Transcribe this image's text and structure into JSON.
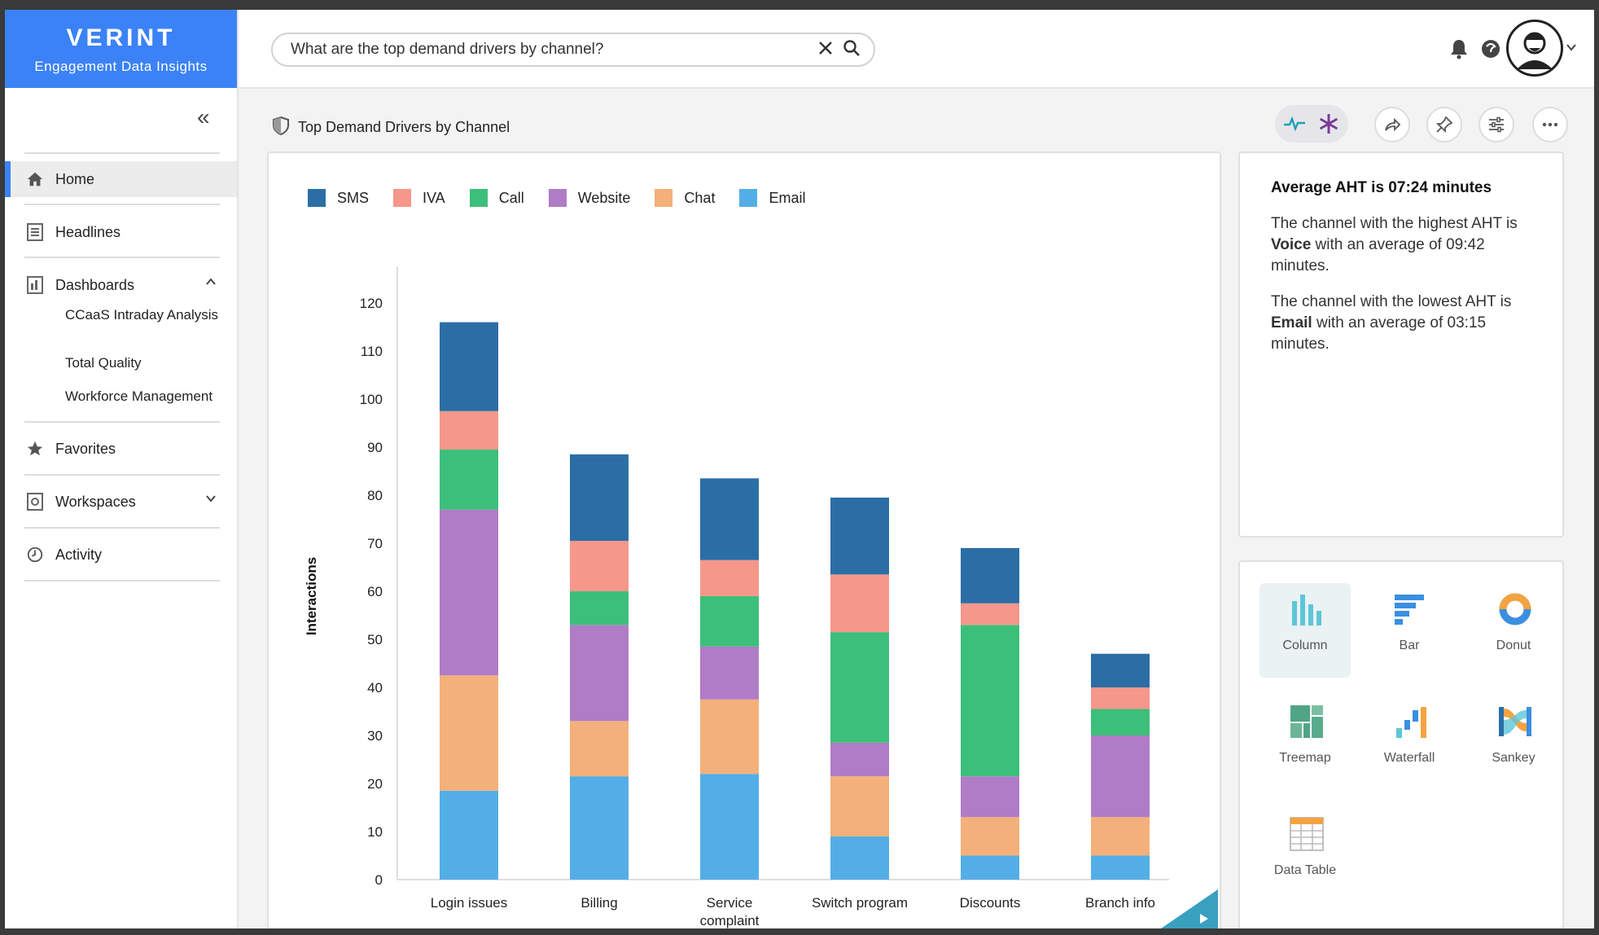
{
  "brand": {
    "name": "VERINT",
    "subtitle": "Engagement Data Insights"
  },
  "sidebar": {
    "items": [
      {
        "label": "Home",
        "icon": "home-icon",
        "active": true
      },
      {
        "label": "Headlines",
        "icon": "newspaper-icon"
      },
      {
        "label": "Dashboards",
        "icon": "dashboard-icon",
        "expanded": true
      },
      {
        "label": "Favorites",
        "icon": "star-icon"
      },
      {
        "label": "Workspaces",
        "icon": "workspace-icon",
        "expanded": false
      },
      {
        "label": "Activity",
        "icon": "clock-icon"
      }
    ],
    "dashboards": [
      "CCaaS Intraday Analysis",
      "Total Quality",
      "Workforce Management"
    ]
  },
  "search": {
    "value": "What are the top demand drivers by channel?"
  },
  "page": {
    "title": "Top Demand Drivers by Channel"
  },
  "insight": {
    "heading": "Average AHT is 07:24 minutes",
    "p1": {
      "before": "The channel with the highest AHT is ",
      "bold": "Voice",
      "after": " with an average of 09:42 minutes."
    },
    "p2": {
      "before": "The channel with the lowest AHT is ",
      "bold": "Email",
      "after": " with an average of 03:15 minutes."
    }
  },
  "chart_types": [
    "Column",
    "Bar",
    "Donut",
    "Treemap",
    "Waterfall",
    "Sankey",
    "Data Table"
  ],
  "selected_chart_type": "Column",
  "colors": {
    "brand": "#3b82f6"
  },
  "chart_data": {
    "type": "bar",
    "stacked": true,
    "title": "",
    "xlabel": "",
    "ylabel": "Interactions",
    "ylim": [
      0,
      120
    ],
    "yticks": [
      0,
      10,
      20,
      30,
      40,
      50,
      60,
      70,
      80,
      90,
      100,
      110,
      120
    ],
    "categories": [
      "Login issues",
      "Billing",
      "Service complaint",
      "Switch program",
      "Discounts",
      "Branch info"
    ],
    "legend_order": [
      "SMS",
      "IVA",
      "Call",
      "Website",
      "Chat",
      "Email"
    ],
    "series": [
      {
        "name": "Email",
        "color": "#53aee6",
        "values": [
          18.5,
          21.5,
          22,
          9,
          5,
          5
        ]
      },
      {
        "name": "Chat",
        "color": "#f4b07a",
        "values": [
          24,
          11.5,
          15.5,
          12.5,
          8,
          8
        ]
      },
      {
        "name": "Website",
        "color": "#b07cc6",
        "values": [
          34.5,
          20,
          11,
          7,
          8.5,
          17
        ]
      },
      {
        "name": "Call",
        "color": "#3cbf7a",
        "values": [
          12.5,
          7,
          10.5,
          23,
          31.5,
          5.5
        ]
      },
      {
        "name": "IVA",
        "color": "#f5978a",
        "values": [
          8,
          10.5,
          7.5,
          12,
          4.5,
          4.5
        ]
      },
      {
        "name": "SMS",
        "color": "#2b6ea6",
        "values": [
          18.5,
          18,
          17,
          16,
          11.5,
          7
        ]
      }
    ],
    "legend_position": "top-left",
    "grid": false
  }
}
